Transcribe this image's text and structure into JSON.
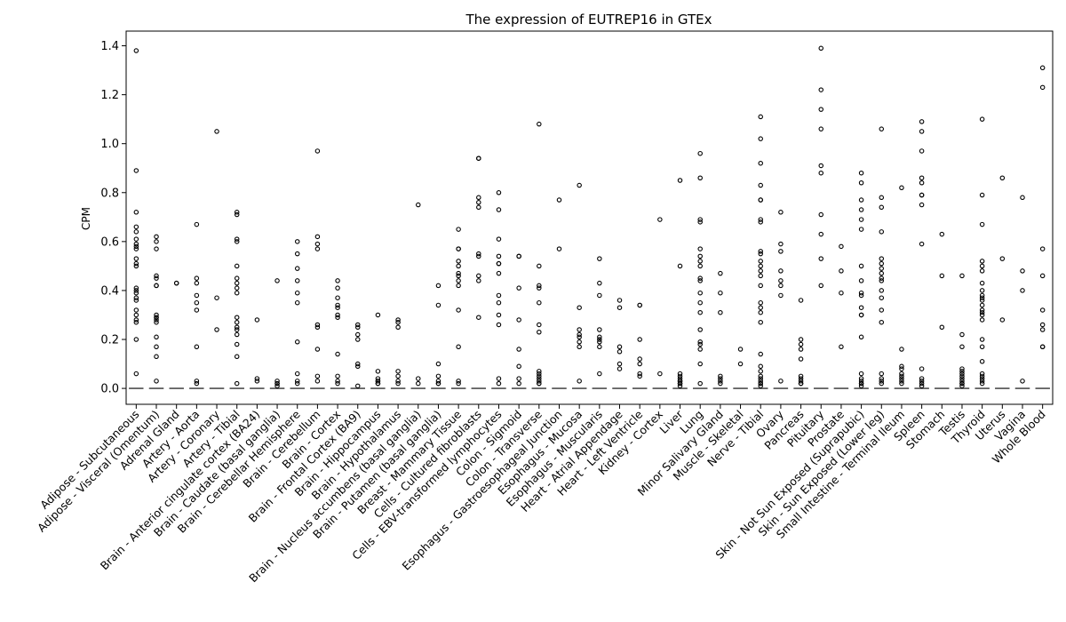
{
  "chart_data": {
    "type": "box",
    "title": "The expression of EUTREP16 in GTEx",
    "xlabel": "",
    "ylabel": "CPM",
    "ylim": [
      -0.065,
      1.46
    ],
    "yticks": [
      0.0,
      0.2,
      0.4,
      0.6,
      0.8,
      1.0,
      1.2,
      1.4
    ],
    "ytick_labels": [
      "0.0",
      "0.2",
      "0.4",
      "0.6",
      "0.8",
      "1.0",
      "1.2",
      "1.4"
    ],
    "grid": false,
    "categories": [
      "Adipose - Subcutaneous",
      "Adipose - Visceral (Omentum)",
      "Adrenal Gland",
      "Artery - Aorta",
      "Artery - Coronary",
      "Artery - Tibial",
      "Brain - Anterior cingulate cortex (BA24)",
      "Brain - Caudate (basal ganglia)",
      "Brain - Cerebellar Hemisphere",
      "Brain - Cerebellum",
      "Brain - Cortex",
      "Brain - Frontal Cortex (BA9)",
      "Brain - Hippocampus",
      "Brain - Hypothalamus",
      "Brain - Nucleus accumbens (basal ganglia)",
      "Brain - Putamen (basal ganglia)",
      "Breast - Mammary Tissue",
      "Cells - Cultured fibroblasts",
      "Cells - EBV-transformed lymphocytes",
      "Colon - Sigmoid",
      "Colon - Transverse",
      "Esophagus - Gastroesophageal Junction",
      "Esophagus - Mucosa",
      "Esophagus - Muscularis",
      "Heart - Atrial Appendage",
      "Heart - Left Ventricle",
      "Kidney - Cortex",
      "Liver",
      "Lung",
      "Minor Salivary Gland",
      "Muscle - Skeletal",
      "Nerve - Tibial",
      "Ovary",
      "Pancreas",
      "Pituitary",
      "Prostate",
      "Skin - Not Sun Exposed (Suprapubic)",
      "Skin - Sun Exposed (Lower leg)",
      "Small Intestine - Terminal Ileum",
      "Spleen",
      "Stomach",
      "Testis",
      "Thyroid",
      "Uterus",
      "Vagina",
      "Whole Blood"
    ],
    "medians": [
      0,
      0,
      0,
      0,
      0,
      0,
      0,
      0,
      0,
      0,
      0,
      0,
      0,
      0,
      0,
      0,
      0,
      0,
      0,
      0,
      0,
      0,
      0,
      0,
      0,
      0,
      0,
      0,
      0,
      0,
      0,
      0,
      0,
      0,
      0,
      0,
      0,
      0,
      0,
      0,
      0,
      0,
      0,
      0,
      0,
      0
    ],
    "outliers": [
      [
        1.38,
        0.89,
        0.72,
        0.66,
        0.64,
        0.61,
        0.59,
        0.58,
        0.57,
        0.53,
        0.51,
        0.5,
        0.41,
        0.4,
        0.39,
        0.37,
        0.36,
        0.32,
        0.3,
        0.28,
        0.27,
        0.2,
        0.06
      ],
      [
        0.62,
        0.6,
        0.57,
        0.46,
        0.45,
        0.42,
        0.42,
        0.3,
        0.29,
        0.29,
        0.28,
        0.27,
        0.21,
        0.17,
        0.13,
        0.03
      ],
      [
        0.43,
        0.43
      ],
      [
        0.67,
        0.45,
        0.43,
        0.38,
        0.35,
        0.32,
        0.17,
        0.03,
        0.02
      ],
      [
        1.05,
        0.37,
        0.24
      ],
      [
        0.72,
        0.71,
        0.61,
        0.6,
        0.5,
        0.45,
        0.43,
        0.41,
        0.39,
        0.29,
        0.27,
        0.25,
        0.24,
        0.22,
        0.18,
        0.13,
        0.02
      ],
      [
        0.28,
        0.04,
        0.03
      ],
      [
        0.44,
        0.03,
        0.02,
        0.02,
        0.01
      ],
      [
        0.6,
        0.55,
        0.49,
        0.44,
        0.39,
        0.35,
        0.19,
        0.06,
        0.03,
        0.02
      ],
      [
        0.97,
        0.62,
        0.59,
        0.57,
        0.26,
        0.25,
        0.16,
        0.05,
        0.03
      ],
      [
        0.44,
        0.41,
        0.37,
        0.34,
        0.33,
        0.3,
        0.29,
        0.14,
        0.05,
        0.03,
        0.02
      ],
      [
        0.26,
        0.25,
        0.22,
        0.2,
        0.1,
        0.09,
        0.01
      ],
      [
        0.3,
        0.07,
        0.04,
        0.03,
        0.03,
        0.02,
        0.02
      ],
      [
        0.28,
        0.27,
        0.25,
        0.07,
        0.05,
        0.03,
        0.02
      ],
      [
        0.75,
        0.04,
        0.02
      ],
      [
        0.42,
        0.34,
        0.1,
        0.05,
        0.03,
        0.02,
        0.02
      ],
      [
        0.65,
        0.57,
        0.57,
        0.52,
        0.5,
        0.47,
        0.46,
        0.44,
        0.42,
        0.32,
        0.17,
        0.03,
        0.02
      ],
      [
        0.94,
        0.94,
        0.78,
        0.76,
        0.74,
        0.55,
        0.54,
        0.46,
        0.44,
        0.29
      ],
      [
        0.8,
        0.73,
        0.61,
        0.54,
        0.51,
        0.51,
        0.47,
        0.38,
        0.35,
        0.3,
        0.26,
        0.04,
        0.02
      ],
      [
        0.54,
        0.54,
        0.41,
        0.28,
        0.16,
        0.09,
        0.04,
        0.02
      ],
      [
        1.08,
        0.5,
        0.42,
        0.41,
        0.35,
        0.26,
        0.23,
        0.07,
        0.06,
        0.05,
        0.04,
        0.03,
        0.02,
        0.02
      ],
      [
        0.77,
        0.57
      ],
      [
        0.83,
        0.33,
        0.24,
        0.22,
        0.21,
        0.19,
        0.17,
        0.03
      ],
      [
        0.53,
        0.43,
        0.38,
        0.24,
        0.21,
        0.2,
        0.19,
        0.17,
        0.06
      ],
      [
        0.36,
        0.33,
        0.17,
        0.15,
        0.1,
        0.08
      ],
      [
        0.34,
        0.34,
        0.2,
        0.12,
        0.1,
        0.06,
        0.05
      ],
      [
        0.69,
        0.06
      ],
      [
        0.85,
        0.5,
        0.06,
        0.05,
        0.04,
        0.03,
        0.03,
        0.02,
        0.02,
        0.01
      ],
      [
        0.96,
        0.86,
        0.69,
        0.68,
        0.57,
        0.54,
        0.52,
        0.5,
        0.45,
        0.44,
        0.39,
        0.35,
        0.31,
        0.24,
        0.19,
        0.18,
        0.16,
        0.1,
        0.02
      ],
      [
        0.47,
        0.39,
        0.31,
        0.05,
        0.04,
        0.03,
        0.02
      ],
      [
        0.16,
        0.1
      ],
      [
        1.11,
        1.02,
        0.92,
        0.83,
        0.77,
        0.77,
        0.69,
        0.68,
        0.56,
        0.55,
        0.52,
        0.5,
        0.48,
        0.46,
        0.42,
        0.35,
        0.33,
        0.31,
        0.27,
        0.14,
        0.09,
        0.07,
        0.05,
        0.04,
        0.03,
        0.02,
        0.02,
        0.01
      ],
      [
        0.72,
        0.59,
        0.56,
        0.48,
        0.44,
        0.42,
        0.38,
        0.03
      ],
      [
        0.36,
        0.2,
        0.18,
        0.16,
        0.12,
        0.05,
        0.04,
        0.03,
        0.02,
        0.02
      ],
      [
        1.39,
        1.22,
        1.14,
        1.06,
        0.91,
        0.88,
        0.71,
        0.63,
        0.53,
        0.42
      ],
      [
        0.58,
        0.48,
        0.39,
        0.17
      ],
      [
        0.88,
        0.84,
        0.77,
        0.73,
        0.69,
        0.65,
        0.5,
        0.44,
        0.39,
        0.38,
        0.33,
        0.3,
        0.3,
        0.21,
        0.06,
        0.04,
        0.03,
        0.02,
        0.02,
        0.01
      ],
      [
        1.06,
        0.78,
        0.74,
        0.64,
        0.53,
        0.51,
        0.49,
        0.47,
        0.45,
        0.44,
        0.4,
        0.37,
        0.32,
        0.27,
        0.06,
        0.04,
        0.03,
        0.02
      ],
      [
        0.82,
        0.16,
        0.09,
        0.08,
        0.06,
        0.05,
        0.04,
        0.03,
        0.02
      ],
      [
        1.09,
        1.05,
        0.97,
        0.86,
        0.84,
        0.79,
        0.79,
        0.75,
        0.59,
        0.08,
        0.04,
        0.03,
        0.02,
        0.01
      ],
      [
        0.63,
        0.46,
        0.25
      ],
      [
        0.46,
        0.22,
        0.17,
        0.08,
        0.07,
        0.06,
        0.05,
        0.04,
        0.03,
        0.02,
        0.02,
        0.01
      ],
      [
        1.1,
        0.79,
        0.67,
        0.52,
        0.5,
        0.48,
        0.43,
        0.4,
        0.38,
        0.37,
        0.36,
        0.34,
        0.32,
        0.31,
        0.3,
        0.28,
        0.2,
        0.17,
        0.11,
        0.06,
        0.05,
        0.04,
        0.03,
        0.02
      ],
      [
        0.86,
        0.53,
        0.28
      ],
      [
        0.78,
        0.48,
        0.4,
        0.03
      ],
      [
        1.31,
        1.23,
        0.57,
        0.46,
        0.32,
        0.26,
        0.24,
        0.17,
        0.17
      ]
    ]
  }
}
